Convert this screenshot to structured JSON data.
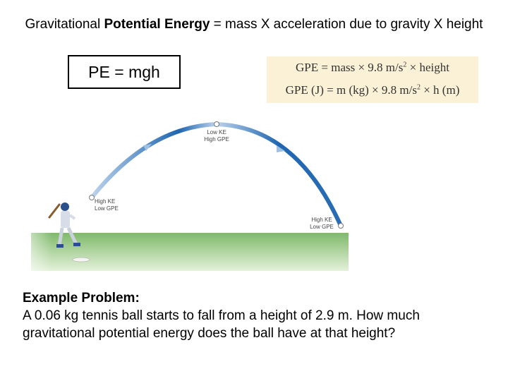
{
  "title": {
    "part1": "Gravitational ",
    "bold": "Potential Energy",
    "part2": " = mass X acceleration due to gravity X height"
  },
  "formula_box": "PE = mgh",
  "gpe_formula": {
    "line1_a": "GPE = mass × 9.8 m/s",
    "line1_sup": "2",
    "line1_b": " × height",
    "line2_a": "GPE (J) = m (kg) × 9.8 m/s",
    "line2_sup": "2",
    "line2_b": " × h (m)"
  },
  "diagram": {
    "top_label_1": "Low KE",
    "top_label_2": "High GPE",
    "left_label_1": "High KE",
    "left_label_2": "Low GPE",
    "right_label_1": "High KE",
    "right_label_2": "Low GPE",
    "colors": {
      "arc_dark": "#1f66b0",
      "arc_light": "#bcd3ec",
      "grass_dark": "#7fb96a",
      "grass_light": "#e4f1da"
    }
  },
  "example": {
    "heading": "Example Problem:",
    "line1": "A 0.06 kg tennis ball starts to fall from a height of 2.9 m. How much",
    "line2": "gravitational potential energy does the ball have at that height?"
  }
}
